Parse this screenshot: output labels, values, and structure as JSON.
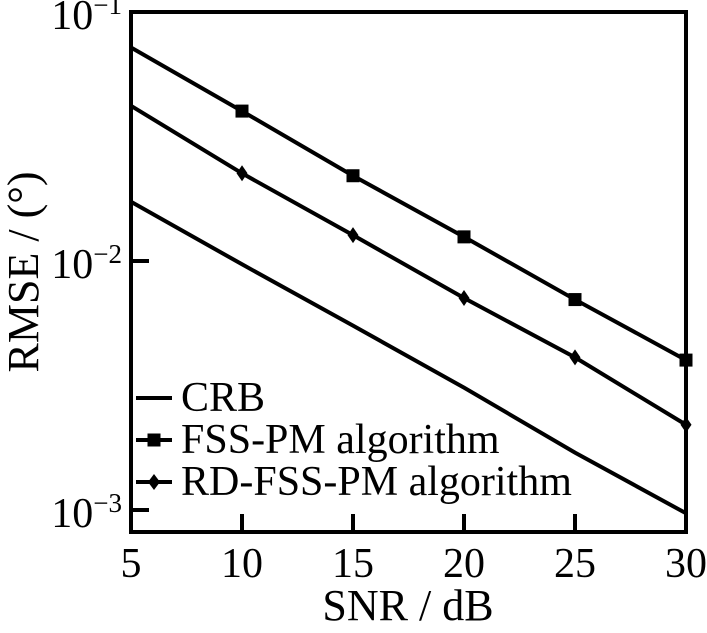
{
  "figure": {
    "background": "#ffffff",
    "ink": "#000000"
  },
  "chart_data": {
    "type": "line",
    "title": "",
    "xlabel": "SNR / dB",
    "ylabel": "RMSE / (°)",
    "grid": false,
    "x_axis": {
      "min": 5,
      "max": 30,
      "ticks": [
        5,
        10,
        15,
        20,
        25,
        30
      ],
      "tick_labels": [
        "5",
        "10",
        "15",
        "20",
        "25",
        "30"
      ]
    },
    "y_axis": {
      "scale": "log",
      "top": 0.1,
      "bottom": 0.00082,
      "ticks": [
        {
          "base": "10",
          "exp": "−1",
          "value": 0.1
        },
        {
          "base": "10",
          "exp": "−2",
          "value": 0.01
        },
        {
          "base": "10",
          "exp": "−3",
          "value": 0.001
        }
      ]
    },
    "x": [
      5,
      10,
      15,
      20,
      25,
      30
    ],
    "series": [
      {
        "name": "CRB",
        "marker": "none",
        "marker_from_index": 0,
        "values": [
          0.0173,
          0.0097,
          0.0055,
          0.0031,
          0.0017,
          0.00097
        ]
      },
      {
        "name": "FSS-PM algorithm",
        "marker": "square",
        "marker_from_index": 1,
        "values": [
          0.072,
          0.04,
          0.022,
          0.0125,
          0.007,
          0.004
        ]
      },
      {
        "name": "RD-FSS-PM algorithm",
        "marker": "diamond",
        "marker_from_index": 1,
        "values": [
          0.042,
          0.0225,
          0.0127,
          0.0071,
          0.0041,
          0.0022
        ]
      }
    ],
    "legend": {
      "position": "bottom-left-inside"
    }
  }
}
